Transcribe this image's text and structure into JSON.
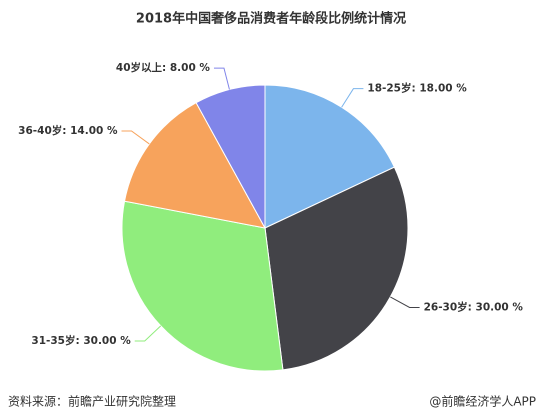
{
  "chart_data": {
    "type": "pie",
    "title": "2018年中国奢侈品消费者年龄段比例统计情况",
    "values": [
      18,
      30,
      30,
      14,
      8
    ],
    "value_labels": [
      "18-25岁: 18.00 %",
      "26-30岁: 30.00 %",
      "31-35岁: 30.00 %",
      "36-40岁: 14.00 %",
      "40岁以上: 8.00 %"
    ],
    "colors": [
      "#7cb5ec",
      "#434348",
      "#90ed7d",
      "#f7a35c",
      "#8085e9"
    ],
    "source": "资料来源：前瞻产业研究院整理",
    "credit": "@前瞻经济学人APP"
  }
}
